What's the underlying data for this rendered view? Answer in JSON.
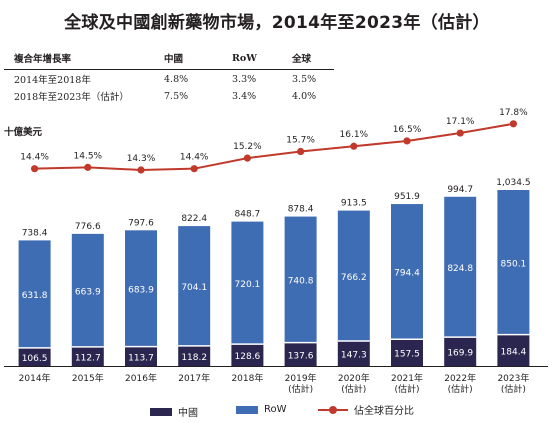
{
  "title": "全球及中國創新藥物市場，2014年至2023年（估計）",
  "cagr_table": {
    "headers": [
      "複合年增長率",
      "中國",
      "RoW",
      "全球"
    ],
    "rows": [
      [
        "2014年至2018年",
        "4.8%",
        "3.3%",
        "3.5%"
      ],
      [
        "2018年至2023年（估計）",
        "7.5%",
        "3.4%",
        "4.0%"
      ]
    ]
  },
  "unit_label": "十億美元",
  "colors": {
    "china": "#2b2650",
    "row": "#3f6db3",
    "share": "#c0392b"
  },
  "chart_data": {
    "type": "bar",
    "stacked": true,
    "categories": [
      "2014年",
      "2015年",
      "2016年",
      "2017年",
      "2018年",
      "2019年\n(估計)",
      "2020年\n(估計)",
      "2021年\n(估計)",
      "2022年\n(估計)",
      "2023年\n(估計)"
    ],
    "series": [
      {
        "name": "中國",
        "values": [
          106.5,
          112.7,
          113.7,
          118.2,
          128.6,
          137.6,
          147.3,
          157.5,
          169.9,
          184.4
        ]
      },
      {
        "name": "RoW",
        "values": [
          631.8,
          663.9,
          683.9,
          704.1,
          720.1,
          740.8,
          766.2,
          794.4,
          824.8,
          850.1
        ]
      }
    ],
    "totals": [
      "738.4",
      "776.6",
      "797.6",
      "822.4",
      "848.7",
      "878.4",
      "913.5",
      "951.9",
      "994.7",
      "1,034.5"
    ],
    "line_series": {
      "name": "佔全球百分比",
      "values": [
        14.4,
        14.5,
        14.3,
        14.4,
        15.2,
        15.7,
        16.1,
        16.5,
        17.1,
        17.8
      ],
      "labels": [
        "14.4%",
        "14.5%",
        "14.3%",
        "14.4%",
        "15.2%",
        "15.7%",
        "16.1%",
        "16.5%",
        "17.1%",
        "17.8%"
      ]
    },
    "legend": [
      "中國",
      "RoW",
      "佔全球百分比"
    ],
    "legend_position": "bottom"
  }
}
